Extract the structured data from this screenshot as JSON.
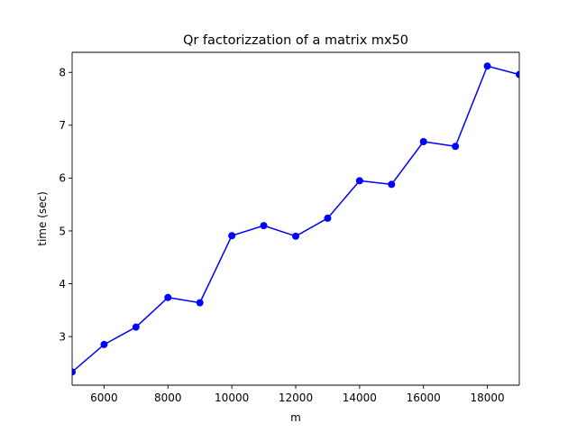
{
  "chart_data": {
    "type": "line",
    "title": "Qr factorizzation of a matrix mx50",
    "xlabel": "m",
    "ylabel": "time (sec)",
    "xlim": [
      5000,
      19000
    ],
    "ylim": [
      2.08,
      8.38
    ],
    "xticks": [
      6000,
      8000,
      10000,
      12000,
      14000,
      16000,
      18000
    ],
    "yticks": [
      3,
      4,
      5,
      6,
      7,
      8
    ],
    "grid": false,
    "series": [
      {
        "color": "#0000ff",
        "marker": "circle",
        "x": [
          5000,
          6000,
          7000,
          8000,
          9000,
          10000,
          11000,
          12000,
          13000,
          14000,
          15000,
          16000,
          17000,
          18000,
          19000
        ],
        "y": [
          2.33,
          2.85,
          3.18,
          3.74,
          3.64,
          4.91,
          5.1,
          4.9,
          5.24,
          5.95,
          5.88,
          6.69,
          6.6,
          8.12,
          7.96
        ]
      }
    ]
  }
}
